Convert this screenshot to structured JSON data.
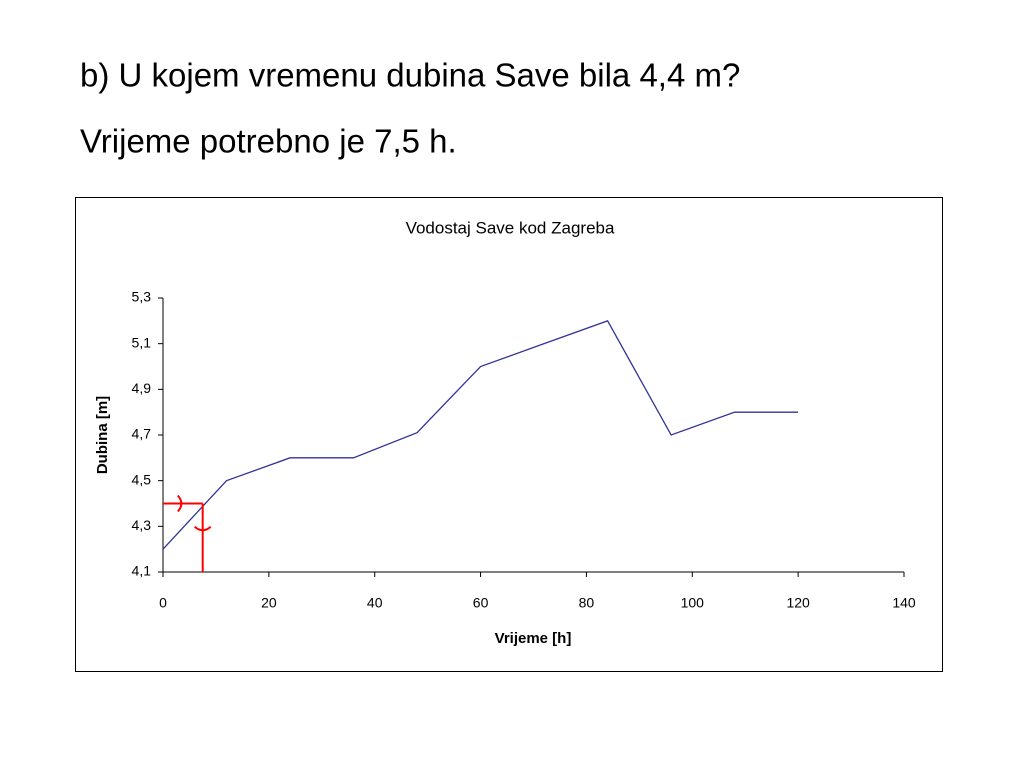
{
  "slide": {
    "question": "b) U kojem vremenu dubina Save bila 4,4 m?",
    "answer": "Vrijeme potrebno je 7,5 h."
  },
  "chart_data": {
    "type": "line",
    "title": "Vodostaj Save kod Zagreba",
    "x_label": "Vrijeme [h]",
    "y_label": "Dubina [m]",
    "x": [
      0,
      12,
      24,
      36,
      48,
      60,
      72,
      84,
      96,
      108,
      120
    ],
    "series": [
      {
        "color": "#333399",
        "values": [
          4.2,
          4.5,
          4.6,
          4.6,
          4.71,
          5.0,
          5.1,
          5.2,
          4.7,
          4.8,
          4.8
        ]
      }
    ],
    "xlim": [
      0,
      140
    ],
    "xticks": [
      0,
      20,
      40,
      60,
      80,
      100,
      120,
      140
    ],
    "ylim": [
      4.1,
      5.3
    ],
    "yticks": [
      {
        "value": 4.1,
        "label": "4,1"
      },
      {
        "value": 4.3,
        "label": "4,3"
      },
      {
        "value": 4.5,
        "label": "4,5"
      },
      {
        "value": 4.7,
        "label": "4,7"
      },
      {
        "value": 4.9,
        "label": "4,9"
      },
      {
        "value": 5.1,
        "label": "5,1"
      },
      {
        "value": 5.3,
        "label": "5,3"
      }
    ],
    "grid": false,
    "annotation": {
      "x": 7.5,
      "y": 4.4,
      "color": "#ff0000"
    }
  }
}
